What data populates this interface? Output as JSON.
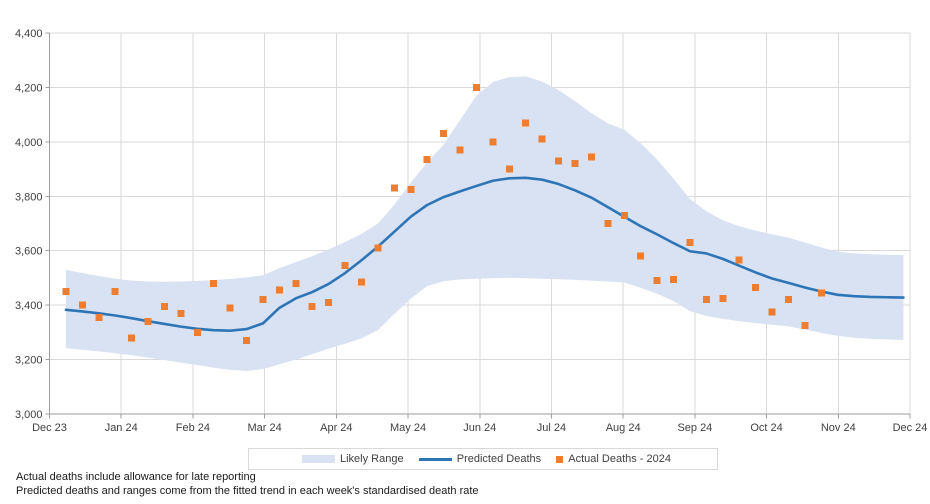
{
  "chart_data": {
    "type": "line",
    "title": "",
    "cadence": "weekly",
    "weeks_total": 52.4,
    "start_week": 1,
    "grid": true,
    "legend_position": "bottom-center",
    "x_axis": {
      "tick_labels": [
        "Dec 23",
        "Jan 24",
        "Feb 24",
        "Mar 24",
        "Apr 24",
        "May 24",
        "Jun 24",
        "Jul 24",
        "Aug 24",
        "Sep 24",
        "Oct 24",
        "Nov 24",
        "Dec 24"
      ]
    },
    "y_axis": {
      "lim": [
        3000,
        4400
      ],
      "ticks": [
        3000,
        3200,
        3400,
        3600,
        3800,
        4000,
        4200,
        4400
      ],
      "tick_labels": [
        "3,000",
        "3,200",
        "3,400",
        "3,600",
        "3,800",
        "4,000",
        "4,200",
        "4,400"
      ]
    },
    "series": [
      {
        "name": "Likely Range",
        "type": "band",
        "color": "#d9e2f3",
        "upper": [
          3530,
          3518,
          3507,
          3497,
          3490,
          3487,
          3486,
          3487,
          3489,
          3492,
          3496,
          3502,
          3510,
          3536,
          3558,
          3580,
          3605,
          3632,
          3662,
          3700,
          3770,
          3850,
          3925,
          3990,
          4080,
          4170,
          4220,
          4238,
          4240,
          4222,
          4190,
          4150,
          4105,
          4068,
          4045,
          3995,
          3935,
          3865,
          3790,
          3745,
          3712,
          3690,
          3674,
          3660,
          3648,
          3630,
          3612,
          3596,
          3590,
          3587,
          3585,
          3584
        ],
        "lower": [
          3242,
          3236,
          3230,
          3223,
          3216,
          3207,
          3198,
          3189,
          3180,
          3170,
          3162,
          3158,
          3165,
          3183,
          3200,
          3220,
          3240,
          3258,
          3278,
          3308,
          3368,
          3424,
          3470,
          3488,
          3494,
          3497,
          3499,
          3500,
          3499,
          3497,
          3495,
          3493,
          3490,
          3487,
          3483,
          3464,
          3442,
          3415,
          3378,
          3360,
          3350,
          3341,
          3334,
          3328,
          3322,
          3310,
          3298,
          3287,
          3280,
          3276,
          3274,
          3272
        ]
      },
      {
        "name": "Predicted Deaths",
        "type": "line",
        "color": "#2e75b6",
        "values": [
          3383,
          3377,
          3370,
          3362,
          3352,
          3341,
          3331,
          3321,
          3313,
          3308,
          3306,
          3312,
          3333,
          3390,
          3425,
          3448,
          3478,
          3518,
          3565,
          3615,
          3670,
          3725,
          3768,
          3797,
          3818,
          3838,
          3857,
          3866,
          3868,
          3861,
          3845,
          3822,
          3795,
          3760,
          3725,
          3690,
          3660,
          3628,
          3598,
          3590,
          3570,
          3545,
          3520,
          3498,
          3482,
          3465,
          3450,
          3438,
          3433,
          3430,
          3429,
          3428
        ]
      },
      {
        "name": "Actual Deaths - 2024",
        "type": "scatter",
        "color": "#ed7d31",
        "values": [
          3450,
          3400,
          3355,
          3450,
          3280,
          3340,
          3395,
          3370,
          3300,
          3480,
          3390,
          3270,
          3420,
          3455,
          3480,
          3395,
          3410,
          3545,
          3485,
          3610,
          3830,
          3825,
          3935,
          4030,
          3970,
          4200,
          4000,
          3900,
          4070,
          4010,
          3930,
          3920,
          3945,
          3700,
          3730,
          3580,
          3490,
          3495,
          3630,
          3420,
          3425,
          3565,
          3465,
          3375,
          3420,
          3325,
          3445
        ]
      }
    ]
  },
  "footnotes": [
    "Actual deaths include allowance for late reporting",
    "Predicted deaths and ranges come from the fitted trend in each week's standardised death rate"
  ],
  "colors": {
    "grid": "#d9d9d9",
    "axis": "#9e9e9e",
    "tick_text": "#404040",
    "footnote_text": "#1a1a1a",
    "background": "#ffffff"
  }
}
